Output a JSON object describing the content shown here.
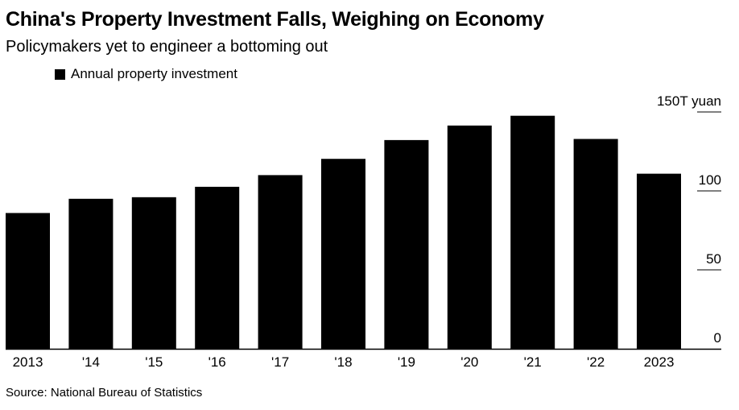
{
  "header": {
    "title": "China's Property Investment Falls, Weighing on Economy",
    "subtitle": "Policymakers yet to engineer a bottoming out"
  },
  "legend": {
    "label": "Annual property investment",
    "color": "#000000"
  },
  "source": "Source: National Bureau of Statistics",
  "chart_data": {
    "type": "bar",
    "title": "China's Property Investment Falls, Weighing on Economy",
    "subtitle": "Policymakers yet to engineer a bottoming out",
    "categories": [
      "2013",
      "'14",
      "'15",
      "'16",
      "'17",
      "'18",
      "'19",
      "'20",
      "'21",
      "'22",
      "2023"
    ],
    "series": [
      {
        "name": "Annual property investment",
        "color": "#000000",
        "values": [
          86.0,
          95.0,
          96.0,
          102.6,
          110.0,
          120.3,
          132.2,
          141.4,
          147.6,
          132.9,
          110.9
        ]
      }
    ],
    "y_unit_label": "150T yuan",
    "y_ticks": [
      0,
      50,
      100,
      150
    ],
    "y_tick_labels": [
      "0",
      "50",
      "100",
      "150T yuan"
    ],
    "ylim": [
      0,
      150
    ],
    "y_axis_side": "right",
    "grid": false,
    "legend_position": "top-left"
  }
}
